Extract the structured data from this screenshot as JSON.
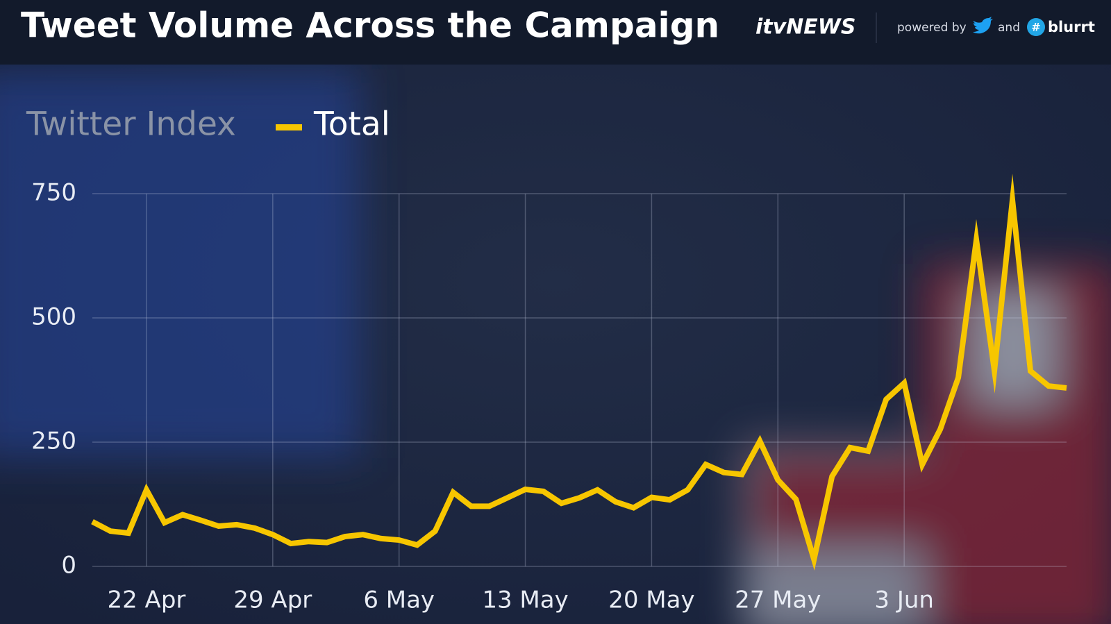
{
  "header": {
    "brand": "itvNEWS",
    "powered": "powered by",
    "and": "and",
    "partner": "blurrt"
  },
  "chart_data": {
    "type": "line",
    "title": "Tweet Volume Across the Campaign",
    "y_label": "Twitter Index",
    "categories": [
      null,
      null,
      null,
      "22 Apr",
      null,
      null,
      null,
      null,
      null,
      null,
      "29 Apr",
      null,
      null,
      null,
      null,
      null,
      null,
      "6 May",
      null,
      null,
      null,
      null,
      null,
      null,
      "13 May",
      null,
      null,
      null,
      null,
      null,
      null,
      "20 May",
      null,
      null,
      null,
      null,
      null,
      null,
      "27 May",
      null,
      null,
      null,
      null,
      null,
      null,
      "3 Jun",
      null,
      null,
      null,
      null,
      null,
      null,
      null,
      null,
      null
    ],
    "series": [
      {
        "name": "Total",
        "color": "#f7c600",
        "values": [
          90,
          71,
          67,
          154,
          88,
          104,
          93,
          81,
          84,
          77,
          64,
          46,
          50,
          48,
          60,
          64,
          56,
          53,
          43,
          71,
          149,
          121,
          121,
          138,
          155,
          151,
          127,
          138,
          154,
          130,
          118,
          139,
          134,
          154,
          205,
          189,
          185,
          252,
          174,
          135,
          14,
          181,
          239,
          232,
          336,
          369,
          205,
          276,
          380,
          657,
          394,
          737,
          393,
          363,
          359
        ]
      }
    ],
    "ylim": [
      0,
      750
    ],
    "yticks": [
      0,
      250,
      500,
      750
    ],
    "grid": true
  }
}
